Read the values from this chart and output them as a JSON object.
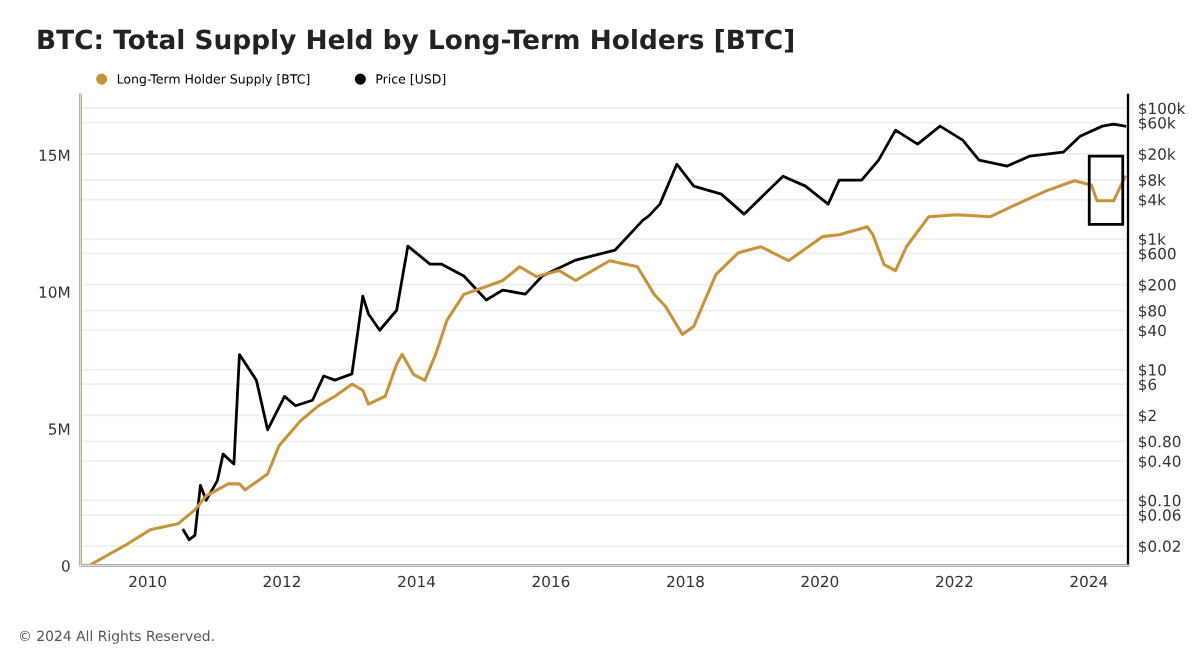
{
  "chart_data": {
    "type": "line",
    "title": "BTC: Total Supply Held by Long-Term Holders [BTC]",
    "annotations": [
      "© 2024 All Rights Reserved."
    ],
    "xlim": [
      "2009-01-01",
      "2024-08-01"
    ],
    "xticks": [
      {
        "value": "2010-01-01",
        "label": "2010"
      },
      {
        "value": "2012-01-01",
        "label": "2012"
      },
      {
        "value": "2014-01-01",
        "label": "2014"
      },
      {
        "value": "2016-01-01",
        "label": "2016"
      },
      {
        "value": "2018-01-01",
        "label": "2018"
      },
      {
        "value": "2020-01-01",
        "label": "2020"
      },
      {
        "value": "2022-01-01",
        "label": "2022"
      },
      {
        "value": "2024-01-01",
        "label": "2024"
      }
    ],
    "ylim": [
      0,
      17200000
    ],
    "yticks": [
      {
        "value": 0,
        "label": "0"
      },
      {
        "value": 5000000,
        "label": "5M"
      },
      {
        "value": 10000000,
        "label": "10M"
      },
      {
        "value": 15000000,
        "label": "15M"
      }
    ],
    "y2lim": [
      0.01,
      160000
    ],
    "y2ticks": [
      {
        "value": 0.02,
        "label": "$0.02"
      },
      {
        "value": 0.06,
        "label": "$0.06"
      },
      {
        "value": 0.1,
        "label": "$0.10"
      },
      {
        "value": 0.4,
        "label": "$0.40"
      },
      {
        "value": 0.8,
        "label": "$0.80"
      },
      {
        "value": 2,
        "label": "$2"
      },
      {
        "value": 6,
        "label": "$6"
      },
      {
        "value": 10,
        "label": "$10"
      },
      {
        "value": 40,
        "label": "$40"
      },
      {
        "value": 80,
        "label": "$80"
      },
      {
        "value": 200,
        "label": "$200"
      },
      {
        "value": 600,
        "label": "$600"
      },
      {
        "value": 1000,
        "label": "$1k"
      },
      {
        "value": 4000,
        "label": "$4k"
      },
      {
        "value": 8000,
        "label": "$8k"
      },
      {
        "value": 20000,
        "label": "$20k"
      },
      {
        "value": 60000,
        "label": "$60k"
      },
      {
        "value": 100000,
        "label": "$100k"
      }
    ],
    "log": "y2",
    "grid": "y",
    "legend": "top left",
    "marker": "none",
    "line_style": "solid",
    "series": [
      {
        "name": "Long-Term Holder Supply [BTC]",
        "color": "#c8933a",
        "x": [
          "2009-02",
          "2009-09",
          "2010-01",
          "2010-06",
          "2010-09",
          "2010-11",
          "2011-03",
          "2011-05",
          "2011-06",
          "2011-10",
          "2011-12",
          "2012-04",
          "2012-07",
          "2012-10",
          "2013-01",
          "2013-03",
          "2013-04",
          "2013-07",
          "2013-09",
          "2013-10",
          "2013-12",
          "2014-02",
          "2014-04",
          "2014-06",
          "2014-09",
          "2015-01",
          "2015-04",
          "2015-07",
          "2015-10",
          "2016-02",
          "2016-05",
          "2016-11",
          "2017-04",
          "2017-07",
          "2017-09",
          "2017-12",
          "2018-02",
          "2018-06",
          "2018-10",
          "2019-02",
          "2019-07",
          "2020-01",
          "2020-04",
          "2020-09",
          "2020-10",
          "2020-12",
          "2021-02",
          "2021-04",
          "2021-08",
          "2022-01",
          "2022-07",
          "2023-01",
          "2023-05",
          "2023-10",
          "2024-01",
          "2024-02",
          "2024-05",
          "2024-07"
        ],
        "values": [
          0,
          800000,
          1310000,
          1530000,
          2040000,
          2550000,
          2990000,
          2990000,
          2770000,
          3350000,
          4370000,
          5320000,
          5830000,
          6190000,
          6630000,
          6410000,
          5900000,
          6190000,
          7360000,
          7720000,
          6990000,
          6770000,
          7720000,
          8960000,
          9910000,
          10200000,
          10420000,
          10920000,
          10560000,
          10780000,
          10420000,
          11140000,
          10920000,
          9910000,
          9470000,
          8450000,
          8740000,
          10630000,
          11430000,
          11650000,
          11140000,
          12020000,
          12090000,
          12380000,
          12090000,
          11000000,
          10780000,
          11650000,
          12750000,
          12820000,
          12750000,
          13330000,
          13690000,
          14060000,
          13910000,
          13330000,
          13330000,
          14200000
        ]
      },
      {
        "name": "Price [USD]",
        "color": "#000000",
        "axis": "y2",
        "x": [
          "2010-07",
          "2010-08",
          "2010-09",
          "2010-10",
          "2010-11",
          "2011-01",
          "2011-02",
          "2011-04",
          "2011-05",
          "2011-08",
          "2011-10",
          "2012-01",
          "2012-03",
          "2012-06",
          "2012-08",
          "2012-10",
          "2013-01",
          "2013-03",
          "2013-04",
          "2013-06",
          "2013-09",
          "2013-11",
          "2014-03",
          "2014-05",
          "2014-09",
          "2015-01",
          "2015-04",
          "2015-08",
          "2015-11",
          "2016-05",
          "2016-12",
          "2017-05",
          "2017-06",
          "2017-08",
          "2017-11",
          "2018-02",
          "2018-07",
          "2018-11",
          "2019-06",
          "2019-10",
          "2020-02",
          "2020-04",
          "2020-08",
          "2020-11",
          "2021-02",
          "2021-06",
          "2021-10",
          "2022-02",
          "2022-05",
          "2022-10",
          "2023-02",
          "2023-08",
          "2023-11",
          "2024-03",
          "2024-05",
          "2024-07"
        ],
        "values": [
          0.035,
          0.025,
          0.029,
          0.17,
          0.1,
          0.2,
          0.51,
          0.36,
          17,
          6.9,
          1.2,
          3.9,
          2.8,
          3.4,
          8,
          6.9,
          8.6,
          133,
          71,
          40,
          81,
          776,
          412,
          412,
          270,
          116,
          165,
          143,
          270,
          474,
          675,
          1940,
          2230,
          3400,
          13900,
          6420,
          4840,
          2390,
          9120,
          6420,
          3400,
          7920,
          7920,
          16000,
          46100,
          28200,
          53100,
          32400,
          16000,
          13000,
          18500,
          21200,
          37300,
          53100,
          56900,
          53100
        ]
      }
    ]
  }
}
